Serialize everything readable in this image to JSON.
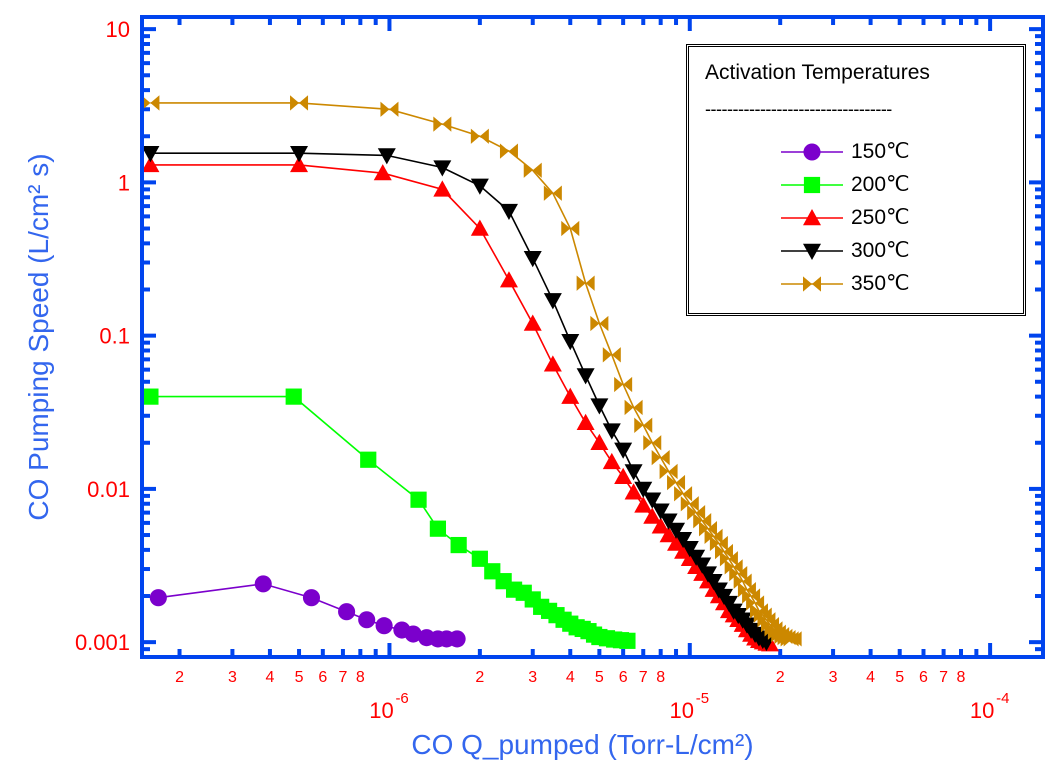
{
  "chart_data": {
    "type": "line",
    "xlabel": "CO Q_pumped (Torr-L/cm²)",
    "ylabel": "CO Pumping Speed (L/cm² s)",
    "x_scale": "log",
    "y_scale": "log",
    "xlim": [
      1.5e-07,
      0.00015
    ],
    "ylim": [
      0.0008,
      12
    ],
    "y_ticks": [
      {
        "value": 10,
        "label": "10"
      },
      {
        "value": 1,
        "label": "1"
      },
      {
        "value": 0.1,
        "label": "0.1"
      },
      {
        "value": 0.01,
        "label": "0.01"
      },
      {
        "value": 0.001,
        "label": "0.001"
      }
    ],
    "x_decade_ticks": [
      {
        "value": 1e-06,
        "mant": "10",
        "exp": "-6"
      },
      {
        "value": 1e-05,
        "mant": "10",
        "exp": "-5"
      },
      {
        "value": 0.0001,
        "mant": "10",
        "exp": "-4"
      }
    ],
    "x_minor_labels": [
      "2",
      "3",
      "4",
      "5",
      "6",
      "7",
      "8"
    ],
    "legend": {
      "title": "Activation Temperatures",
      "separator": "----------------------------------",
      "position": "top-right"
    },
    "series": [
      {
        "name": "150℃",
        "color": "#7b00cc",
        "marker": "circle",
        "x": [
          1.7e-07,
          3.8e-07,
          5.5e-07,
          7.2e-07,
          8.4e-07,
          9.6e-07,
          1.1e-06,
          1.2e-06,
          1.33e-06,
          1.45e-06,
          1.55e-06,
          1.68e-06
        ],
        "y": [
          0.00195,
          0.0024,
          0.00195,
          0.00158,
          0.0014,
          0.00128,
          0.0012,
          0.00113,
          0.00107,
          0.00105,
          0.00105,
          0.00105
        ]
      },
      {
        "name": "200℃",
        "color": "#00ff00",
        "marker": "square",
        "x": [
          1.6e-07,
          4.8e-07,
          8.5e-07,
          1.25e-06,
          1.45e-06,
          1.7e-06,
          2e-06,
          2.2e-06,
          2.4e-06,
          2.6e-06,
          2.8e-06,
          3e-06,
          3.2e-06,
          3.4e-06,
          3.6e-06,
          3.8e-06,
          4e-06,
          4.2e-06,
          4.4e-06,
          4.6e-06,
          4.8e-06,
          5e-06,
          5.3e-06,
          5.6e-06,
          5.9e-06,
          6.2e-06
        ],
        "y": [
          0.04,
          0.04,
          0.0155,
          0.0085,
          0.0055,
          0.0043,
          0.0035,
          0.0029,
          0.0025,
          0.0022,
          0.0021,
          0.0019,
          0.0017,
          0.0016,
          0.0015,
          0.0014,
          0.00132,
          0.00125,
          0.00122,
          0.00118,
          0.00112,
          0.00108,
          0.00106,
          0.00104,
          0.00103,
          0.00102
        ]
      },
      {
        "name": "250℃",
        "color": "#ff0000",
        "marker": "triangle-up",
        "x": [
          1.6e-07,
          5e-07,
          9.5e-07,
          1.5e-06,
          2e-06,
          2.5e-06,
          3e-06,
          3.5e-06,
          4e-06,
          4.5e-06,
          5e-06,
          5.5e-06,
          6e-06,
          6.5e-06,
          7e-06,
          7.5e-06,
          8e-06,
          8.5e-06,
          9e-06,
          9.5e-06,
          1e-05,
          1.05e-05,
          1.1e-05,
          1.15e-05,
          1.2e-05,
          1.25e-05,
          1.3e-05,
          1.35e-05,
          1.4e-05,
          1.45e-05,
          1.5e-05,
          1.55e-05,
          1.6e-05,
          1.65e-05,
          1.7e-05,
          1.75e-05,
          1.8e-05,
          1.85e-05
        ],
        "y": [
          1.3,
          1.3,
          1.15,
          0.9,
          0.5,
          0.23,
          0.12,
          0.065,
          0.04,
          0.027,
          0.02,
          0.015,
          0.012,
          0.0095,
          0.0078,
          0.0066,
          0.0057,
          0.005,
          0.0044,
          0.0039,
          0.0035,
          0.0031,
          0.0028,
          0.0025,
          0.0022,
          0.002,
          0.0018,
          0.0016,
          0.0015,
          0.0014,
          0.0013,
          0.0012,
          0.00112,
          0.00106,
          0.00102,
          0.001,
          0.00098,
          0.00097
        ]
      },
      {
        "name": "300℃",
        "color": "#000000",
        "marker": "triangle-down",
        "x": [
          1.6e-07,
          5e-07,
          9.8e-07,
          1.5e-06,
          2e-06,
          2.5e-06,
          3e-06,
          3.5e-06,
          4e-06,
          4.5e-06,
          5e-06,
          5.5e-06,
          6e-06,
          6.5e-06,
          7e-06,
          7.5e-06,
          8e-06,
          8.5e-06,
          9e-06,
          9.5e-06,
          1e-05,
          1.05e-05,
          1.1e-05,
          1.15e-05,
          1.2e-05,
          1.25e-05,
          1.3e-05,
          1.35e-05,
          1.4e-05,
          1.45e-05,
          1.5e-05,
          1.55e-05,
          1.6e-05,
          1.65e-05,
          1.7e-05,
          1.75e-05,
          1.8e-05
        ],
        "y": [
          1.55,
          1.55,
          1.5,
          1.25,
          0.95,
          0.65,
          0.32,
          0.17,
          0.092,
          0.055,
          0.035,
          0.024,
          0.018,
          0.013,
          0.01,
          0.0085,
          0.0072,
          0.0062,
          0.0054,
          0.0047,
          0.0041,
          0.0036,
          0.0032,
          0.0028,
          0.0025,
          0.0022,
          0.002,
          0.0018,
          0.0016,
          0.0015,
          0.0014,
          0.0013,
          0.0012,
          0.00113,
          0.00107,
          0.00103,
          0.001
        ]
      },
      {
        "name": "350℃",
        "color": "#cc8800",
        "marker": "bowtie",
        "x": [
          1.6e-07,
          5e-07,
          1e-06,
          1.5e-06,
          2e-06,
          2.5e-06,
          3e-06,
          3.5e-06,
          4e-06,
          4.5e-06,
          5e-06,
          5.5e-06,
          6e-06,
          6.5e-06,
          7e-06,
          7.5e-06,
          8e-06,
          8.5e-06,
          9e-06,
          9.5e-06,
          1e-05,
          1.05e-05,
          1.1e-05,
          1.15e-05,
          1.2e-05,
          1.25e-05,
          1.3e-05,
          1.35e-05,
          1.4e-05,
          1.45e-05,
          1.5e-05,
          1.55e-05,
          1.6e-05,
          1.65e-05,
          1.7e-05,
          1.75e-05,
          1.8e-05,
          1.85e-05,
          1.9e-05,
          1.95e-05,
          2e-05,
          2.05e-05,
          2.1e-05,
          2.15e-05,
          2.2e-05
        ],
        "y": [
          3.3,
          3.3,
          3.0,
          2.4,
          2.0,
          1.6,
          1.2,
          0.85,
          0.5,
          0.22,
          0.12,
          0.075,
          0.048,
          0.034,
          0.026,
          0.02,
          0.016,
          0.013,
          0.011,
          0.0093,
          0.008,
          0.007,
          0.0062,
          0.0055,
          0.0049,
          0.0044,
          0.0039,
          0.0035,
          0.0031,
          0.0028,
          0.0025,
          0.0022,
          0.002,
          0.0018,
          0.0016,
          0.0015,
          0.0014,
          0.0013,
          0.00122,
          0.00116,
          0.00112,
          0.00109,
          0.00107,
          0.00105,
          0.00105
        ]
      }
    ]
  },
  "colors": {
    "axis": "#0044ee",
    "tick_label": "#ff0000",
    "axis_title": "#3366ee"
  }
}
